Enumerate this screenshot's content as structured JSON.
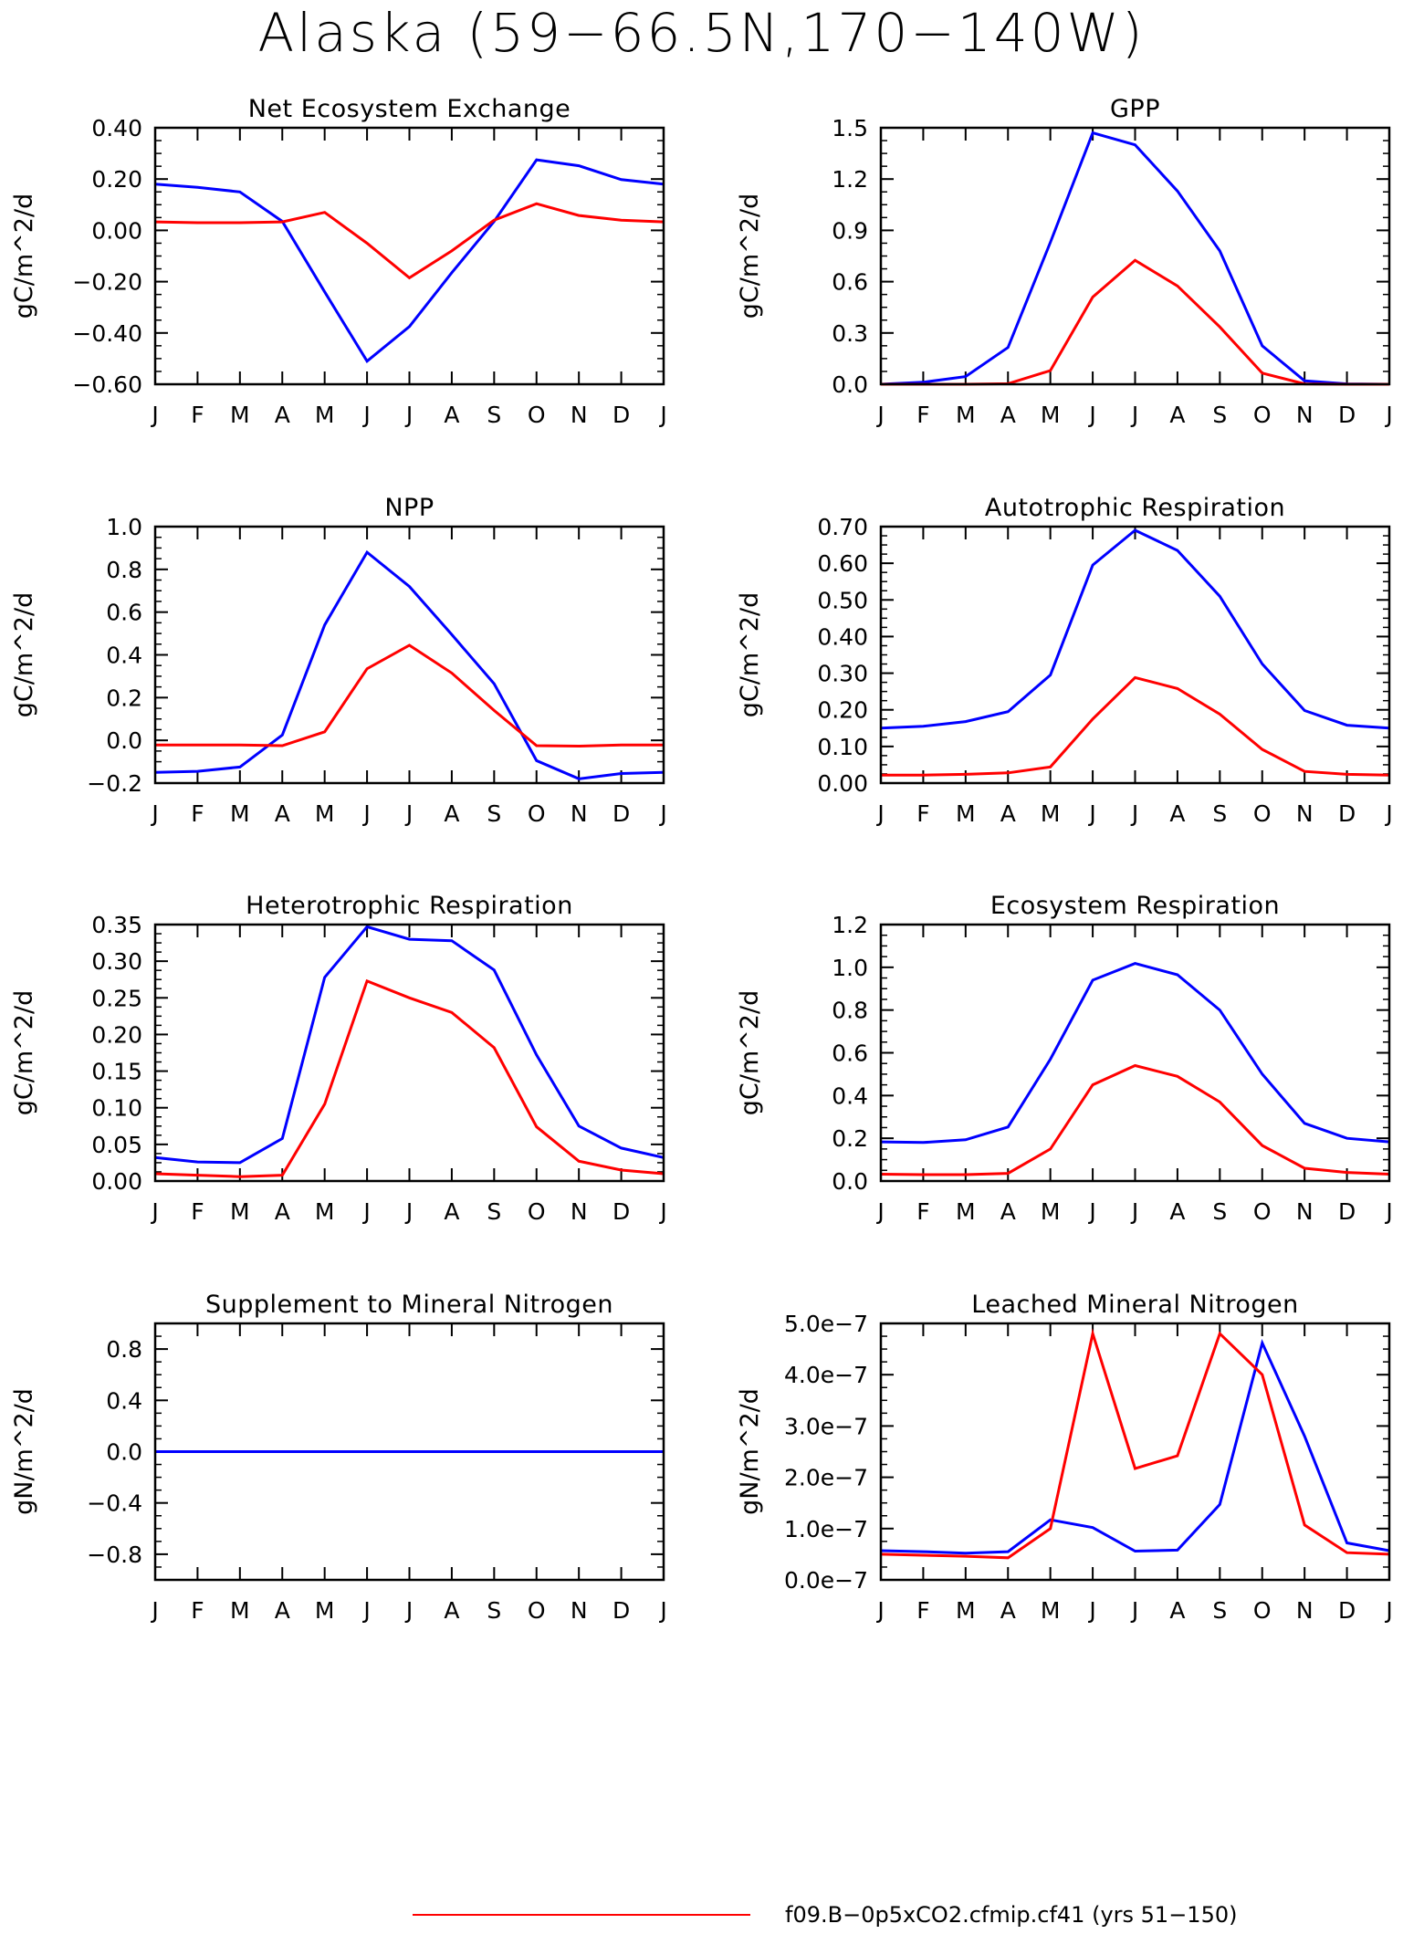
{
  "figure": {
    "title": "Alaska (59−66.5N,170−140W)",
    "months": [
      "J",
      "F",
      "M",
      "A",
      "M",
      "J",
      "J",
      "A",
      "S",
      "O",
      "N",
      "D",
      "J"
    ],
    "series_colors": {
      "case": "#ff0000",
      "reference": "#0000ff"
    },
    "legend": [
      {
        "label": "f09.B−0p5xCO2.cfmip.cf41 (yrs 51−150)",
        "color": "#ff0000"
      }
    ]
  },
  "chart_data": [
    {
      "type": "line",
      "title": "Net Ecosystem Exchange",
      "ylabel": "gC/m^2/d",
      "xlabel": "",
      "ylim": [
        -0.6,
        0.4
      ],
      "yticks": [
        -0.6,
        -0.4,
        -0.2,
        0.0,
        0.2,
        0.4
      ],
      "ytick_labels": [
        "−0.60",
        "−0.40",
        "−0.20",
        "0.00",
        "0.20",
        "0.40"
      ],
      "series": [
        {
          "color": "#0000ff",
          "values": [
            0.18,
            0.168,
            0.15,
            0.035,
            -0.24,
            -0.51,
            -0.375,
            -0.165,
            0.035,
            0.275,
            0.252,
            0.198,
            0.18
          ]
        },
        {
          "color": "#ff0000",
          "values": [
            0.033,
            0.03,
            0.03,
            0.033,
            0.07,
            -0.05,
            -0.185,
            -0.08,
            0.04,
            0.104,
            0.058,
            0.04,
            0.033
          ]
        }
      ]
    },
    {
      "type": "line",
      "title": "GPP",
      "ylabel": "gC/m^2/d",
      "xlabel": "",
      "ylim": [
        0,
        1.5
      ],
      "yticks": [
        0,
        0.3,
        0.6,
        0.9,
        1.2,
        1.5
      ],
      "ytick_labels": [
        "0.0",
        "0.3",
        "0.6",
        "0.9",
        "1.2",
        "1.5"
      ],
      "series": [
        {
          "color": "#0000ff",
          "values": [
            0.0,
            0.012,
            0.045,
            0.215,
            0.83,
            1.47,
            1.4,
            1.13,
            0.78,
            0.225,
            0.02,
            0.002,
            0.0
          ]
        },
        {
          "color": "#ff0000",
          "values": [
            0.0,
            0.0,
            0.0,
            0.003,
            0.08,
            0.51,
            0.725,
            0.575,
            0.335,
            0.065,
            0.002,
            0.0,
            0.0
          ]
        }
      ]
    },
    {
      "type": "line",
      "title": "NPP",
      "ylabel": "gC/m^2/d",
      "xlabel": "",
      "ylim": [
        -0.2,
        1.0
      ],
      "yticks": [
        -0.2,
        0.0,
        0.2,
        0.4,
        0.6,
        0.8,
        1.0
      ],
      "ytick_labels": [
        "−0.2",
        "0.0",
        "0.2",
        "0.4",
        "0.6",
        "0.8",
        "1.0"
      ],
      "series": [
        {
          "color": "#0000ff",
          "values": [
            -0.15,
            -0.145,
            -0.125,
            0.025,
            0.54,
            0.88,
            0.72,
            0.495,
            0.265,
            -0.095,
            -0.18,
            -0.155,
            -0.15
          ]
        },
        {
          "color": "#ff0000",
          "values": [
            -0.022,
            -0.022,
            -0.022,
            -0.025,
            0.04,
            0.335,
            0.445,
            0.315,
            0.14,
            -0.025,
            -0.027,
            -0.022,
            -0.022
          ]
        }
      ]
    },
    {
      "type": "line",
      "title": "Autotrophic Respiration",
      "ylabel": "gC/m^2/d",
      "xlabel": "",
      "ylim": [
        0,
        0.7
      ],
      "yticks": [
        0,
        0.1,
        0.2,
        0.3,
        0.4,
        0.5,
        0.6,
        0.7
      ],
      "ytick_labels": [
        "0.00",
        "0.10",
        "0.20",
        "0.30",
        "0.40",
        "0.50",
        "0.60",
        "0.70"
      ],
      "series": [
        {
          "color": "#0000ff",
          "values": [
            0.15,
            0.155,
            0.168,
            0.195,
            0.295,
            0.595,
            0.69,
            0.635,
            0.51,
            0.325,
            0.198,
            0.158,
            0.15
          ]
        },
        {
          "color": "#ff0000",
          "values": [
            0.022,
            0.022,
            0.024,
            0.028,
            0.044,
            0.175,
            0.288,
            0.258,
            0.188,
            0.092,
            0.032,
            0.024,
            0.022
          ]
        }
      ]
    },
    {
      "type": "line",
      "title": "Heterotrophic Respiration",
      "ylabel": "gC/m^2/d",
      "xlabel": "",
      "ylim": [
        0,
        0.35
      ],
      "yticks": [
        0,
        0.05,
        0.1,
        0.15,
        0.2,
        0.25,
        0.3,
        0.35
      ],
      "ytick_labels": [
        "0.00",
        "0.05",
        "0.10",
        "0.15",
        "0.20",
        "0.25",
        "0.30",
        "0.35"
      ],
      "series": [
        {
          "color": "#0000ff",
          "values": [
            0.032,
            0.026,
            0.025,
            0.058,
            0.278,
            0.347,
            0.33,
            0.328,
            0.288,
            0.172,
            0.075,
            0.045,
            0.032
          ]
        },
        {
          "color": "#ff0000",
          "values": [
            0.01,
            0.008,
            0.006,
            0.008,
            0.105,
            0.273,
            0.25,
            0.23,
            0.182,
            0.074,
            0.027,
            0.015,
            0.01
          ]
        }
      ]
    },
    {
      "type": "line",
      "title": "Ecosystem Respiration",
      "ylabel": "gC/m^2/d",
      "xlabel": "",
      "ylim": [
        0,
        1.2
      ],
      "yticks": [
        0,
        0.2,
        0.4,
        0.6,
        0.8,
        1.0,
        1.2
      ],
      "ytick_labels": [
        "0.0",
        "0.2",
        "0.4",
        "0.6",
        "0.8",
        "1.0",
        "1.2"
      ],
      "series": [
        {
          "color": "#0000ff",
          "values": [
            0.183,
            0.18,
            0.193,
            0.253,
            0.57,
            0.94,
            1.018,
            0.965,
            0.8,
            0.5,
            0.27,
            0.2,
            0.183
          ]
        },
        {
          "color": "#ff0000",
          "values": [
            0.032,
            0.03,
            0.03,
            0.036,
            0.15,
            0.45,
            0.54,
            0.49,
            0.37,
            0.166,
            0.06,
            0.04,
            0.032
          ]
        }
      ]
    },
    {
      "type": "line",
      "title": "Supplement to Mineral Nitrogen",
      "ylabel": "gN/m^2/d",
      "xlabel": "",
      "ylim": [
        -1.0,
        1.0
      ],
      "yticks": [
        -0.8,
        -0.4,
        0.0,
        0.4,
        0.8
      ],
      "ytick_labels": [
        "−0.8",
        "−0.4",
        "0.0",
        "0.4",
        "0.8"
      ],
      "series": [
        {
          "color": "#ff0000",
          "values": [
            0,
            0,
            0,
            0,
            0,
            0,
            0,
            0,
            0,
            0,
            0,
            0,
            0
          ]
        },
        {
          "color": "#0000ff",
          "values": [
            0,
            0,
            0,
            0,
            0,
            0,
            0,
            0,
            0,
            0,
            0,
            0,
            0
          ]
        }
      ]
    },
    {
      "type": "line",
      "title": "Leached Mineral Nitrogen",
      "ylabel": "gN/m^2/d",
      "xlabel": "",
      "ylim": [
        0,
        5e-07
      ],
      "yticks": [
        0,
        1e-07,
        2e-07,
        3e-07,
        4e-07,
        5e-07
      ],
      "ytick_labels": [
        "0.0e−7",
        "1.0e−7",
        "2.0e−7",
        "3.0e−7",
        "4.0e−7",
        "5.0e−7"
      ],
      "series": [
        {
          "color": "#0000ff",
          "values": [
            5.7e-08,
            5.5e-08,
            5.2e-08,
            5.5e-08,
            1.17e-07,
            1.02e-07,
            5.6e-08,
            5.8e-08,
            1.47e-07,
            4.62e-07,
            2.8e-07,
            7.2e-08,
            5.7e-08
          ]
        },
        {
          "color": "#ff0000",
          "values": [
            5e-08,
            4.8e-08,
            4.6e-08,
            4.3e-08,
            1e-07,
            4.8e-07,
            2.17e-07,
            2.42e-07,
            4.8e-07,
            4e-07,
            1.07e-07,
            5.3e-08,
            5e-08
          ]
        }
      ]
    }
  ]
}
